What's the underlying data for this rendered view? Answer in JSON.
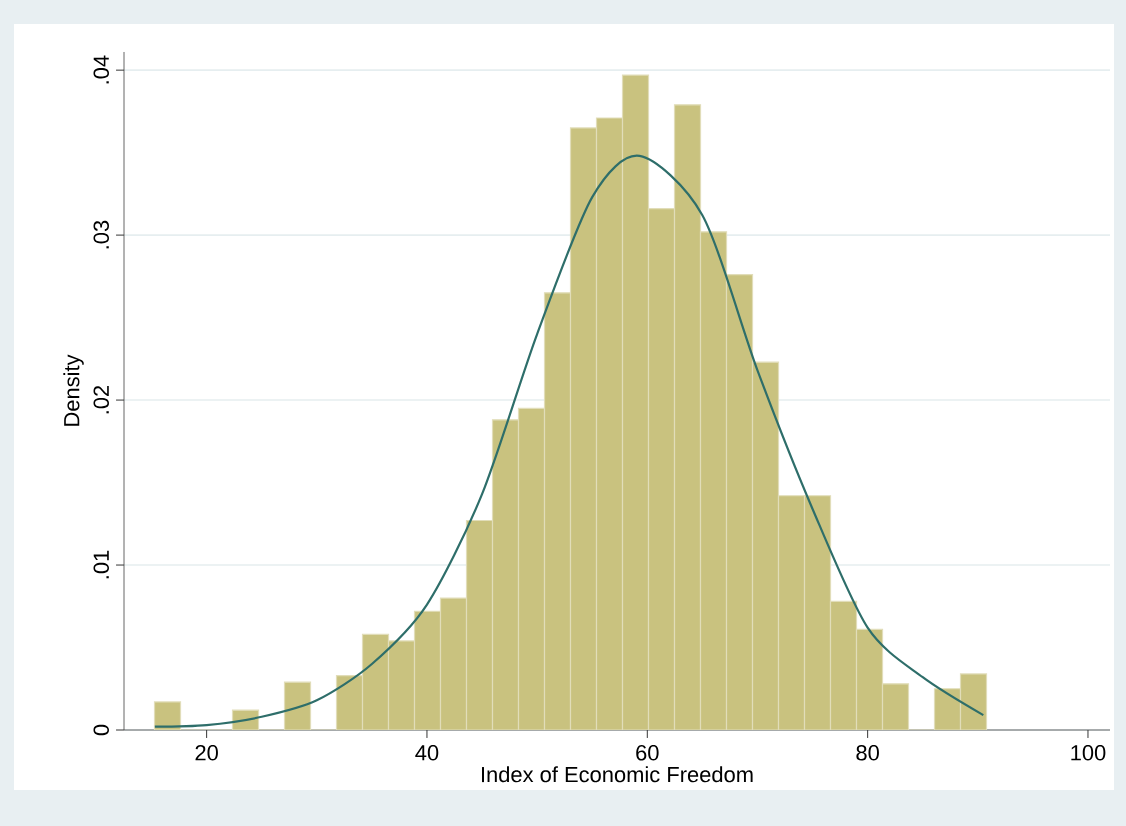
{
  "chart_data": {
    "type": "histogram",
    "xlabel": "Index of Economic Freedom",
    "ylabel": "Density",
    "bins": [
      15.27,
      17.63,
      19.99,
      22.35,
      24.71,
      27.07,
      29.43,
      31.79,
      34.15,
      36.51,
      38.87,
      41.23,
      43.59,
      45.95,
      48.31,
      50.67,
      53.03,
      55.39,
      57.75,
      60.11,
      62.47,
      64.83,
      67.19,
      69.55,
      71.91,
      74.27,
      76.63,
      78.99,
      81.35,
      83.71,
      86.07,
      88.43,
      90.79
    ],
    "values": [
      0.0017,
      0,
      0,
      0.0012,
      0,
      0.0029,
      0,
      0.0033,
      0.0058,
      0.0054,
      0.0072,
      0.008,
      0.0127,
      0.0188,
      0.0195,
      0.0265,
      0.0365,
      0.0371,
      0.0397,
      0.0316,
      0.0379,
      0.0302,
      0.0276,
      0.0223,
      0.0142,
      0.0142,
      0.0078,
      0.0061,
      0.0028,
      0,
      0.0025,
      0.0034
    ],
    "color": "#c9c27f",
    "series": [
      {
        "type": "line",
        "color": "#2e6e6a",
        "x": [
          15.3,
          20,
          25,
          30,
          35,
          40,
          45,
          50,
          55,
          59.3,
          65,
          70,
          75,
          80,
          85,
          90.5
        ],
        "values": [
          0.0002,
          0.0003,
          0.0008,
          0.0018,
          0.004,
          0.0076,
          0.0143,
          0.024,
          0.0323,
          0.0348,
          0.0312,
          0.0218,
          0.0134,
          0.0062,
          0.0032,
          0.0009
        ]
      }
    ],
    "xlim": [
      12.5,
      102
    ],
    "ylim": [
      0,
      0.0411
    ],
    "xticks": [
      20,
      40,
      60,
      80,
      100
    ],
    "yticks": [
      {
        "value": 0,
        "label": "0"
      },
      {
        "value": 0.01,
        "label": ".01"
      },
      {
        "value": 0.02,
        "label": ".02"
      },
      {
        "value": 0.03,
        "label": ".03"
      },
      {
        "value": 0.04,
        "label": ".04"
      }
    ],
    "grid": "y"
  }
}
